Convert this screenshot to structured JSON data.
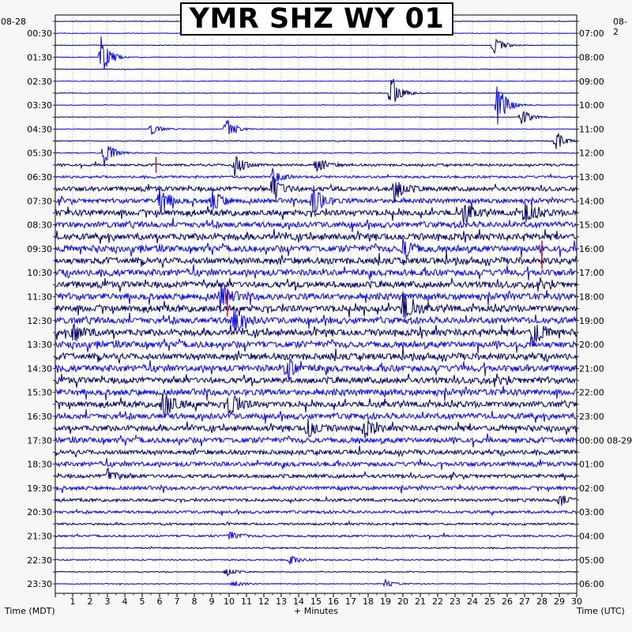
{
  "title": "YMR SHZ WY 01",
  "left_date": "08-28",
  "right_date": "08-2",
  "colors": {
    "trace_primary": "#0a0a6e",
    "trace_secondary": "#1010ee",
    "gridline": "#7a7a7a",
    "event_marker": "#dd0000",
    "background": "#f7f7f7",
    "plot_background": "#ffffff"
  },
  "chart_data": {
    "type": "helicorder",
    "title": "YMR SHZ WY 01",
    "xlabel": "+ Minutes",
    "left_axis_label": "Time (MDT)",
    "right_axis_label": "Time (UTC)",
    "xlim": [
      0,
      30
    ],
    "x_ticks": [
      "1",
      "2",
      "3",
      "4",
      "5",
      "6",
      "7",
      "8",
      "9",
      "10",
      "11",
      "12",
      "13",
      "14",
      "15",
      "16",
      "17",
      "18",
      "19",
      "20",
      "21",
      "22",
      "23",
      "24",
      "25",
      "26",
      "27",
      "28",
      "29",
      "30"
    ],
    "left_ticks": [
      "00:30",
      "01:30",
      "02:30",
      "03:30",
      "04:30",
      "05:30",
      "06:30",
      "07:30",
      "08:30",
      "09:30",
      "10:30",
      "11:30",
      "12:30",
      "13:30",
      "14:30",
      "15:30",
      "16:30",
      "17:30",
      "18:30",
      "19:30",
      "20:30",
      "21:30",
      "22:30",
      "23:30"
    ],
    "right_ticks": [
      "07:00",
      "08:00",
      "09:00",
      "10:00",
      "11:00",
      "12:00",
      "13:00",
      "14:00",
      "15:00",
      "16:00",
      "17:00",
      "18:00",
      "19:00",
      "20:00",
      "21:00",
      "22:00",
      "23:00",
      "00:00 08-29",
      "01:00",
      "02:00",
      "03:00",
      "04:00",
      "05:00",
      "06:00"
    ],
    "trace_count": 48,
    "minutes_per_trace": 30,
    "trace_colors": [
      "#0a0a6e",
      "#1010ee"
    ],
    "noise_level_by_hour": [
      0.3,
      0.3,
      0.3,
      0.3,
      0.3,
      0.55,
      1.2,
      2.3,
      3.0,
      3.3,
      3.2,
      3.2,
      3.3,
      3.3,
      3.2,
      3.1,
      3.0,
      2.8,
      2.3,
      1.9,
      1.5,
      1.1,
      0.7,
      0.45
    ],
    "events": [
      {
        "trace": 2,
        "minute": 25.2,
        "amplitude": 14
      },
      {
        "trace": 3,
        "minute": 2.6,
        "amplitude": 30
      },
      {
        "trace": 6,
        "minute": 19.3,
        "amplitude": 26
      },
      {
        "trace": 7,
        "minute": 25.4,
        "amplitude": 32
      },
      {
        "trace": 8,
        "minute": 26.8,
        "amplitude": 12
      },
      {
        "trace": 9,
        "minute": 9.8,
        "amplitude": 16
      },
      {
        "trace": 9,
        "minute": 5.5,
        "amplitude": 8
      },
      {
        "trace": 10,
        "minute": 28.8,
        "amplitude": 12
      },
      {
        "trace": 11,
        "minute": 2.8,
        "amplitude": 18
      },
      {
        "trace": 12,
        "minute": 10.3,
        "amplitude": 15
      },
      {
        "trace": 12,
        "minute": 15.0,
        "amplitude": 10
      },
      {
        "trace": 13,
        "minute": 12.5,
        "amplitude": 12
      },
      {
        "trace": 14,
        "minute": 12.5,
        "amplitude": 18
      },
      {
        "trace": 14,
        "minute": 19.5,
        "amplitude": 16
      },
      {
        "trace": 15,
        "minute": 6.0,
        "amplitude": 18
      },
      {
        "trace": 15,
        "minute": 9.0,
        "amplitude": 16
      },
      {
        "trace": 15,
        "minute": 14.8,
        "amplitude": 22
      },
      {
        "trace": 16,
        "minute": 27.0,
        "amplitude": 16
      },
      {
        "trace": 16,
        "minute": 23.5,
        "amplitude": 14
      },
      {
        "trace": 19,
        "minute": 20.0,
        "amplitude": 14
      },
      {
        "trace": 23,
        "minute": 9.5,
        "amplitude": 18
      },
      {
        "trace": 24,
        "minute": 20.0,
        "amplitude": 18
      },
      {
        "trace": 25,
        "minute": 10.2,
        "amplitude": 20
      },
      {
        "trace": 26,
        "minute": 1.0,
        "amplitude": 16
      },
      {
        "trace": 26,
        "minute": 27.5,
        "amplitude": 18
      },
      {
        "trace": 29,
        "minute": 13.3,
        "amplitude": 16
      },
      {
        "trace": 32,
        "minute": 6.2,
        "amplitude": 22
      },
      {
        "trace": 32,
        "minute": 10.0,
        "amplitude": 18
      },
      {
        "trace": 34,
        "minute": 14.5,
        "amplitude": 14
      },
      {
        "trace": 34,
        "minute": 17.8,
        "amplitude": 12
      },
      {
        "trace": 38,
        "minute": 3.0,
        "amplitude": 10
      },
      {
        "trace": 40,
        "minute": 29.0,
        "amplitude": 9
      },
      {
        "trace": 43,
        "minute": 10.0,
        "amplitude": 6
      },
      {
        "trace": 45,
        "minute": 13.5,
        "amplitude": 6
      },
      {
        "trace": 46,
        "minute": 9.8,
        "amplitude": 6
      },
      {
        "trace": 47,
        "minute": 10.2,
        "amplitude": 5
      },
      {
        "trace": 47,
        "minute": 19.0,
        "amplitude": 5
      }
    ],
    "red_markers": [
      {
        "trace": 12,
        "minute": 5.8
      },
      {
        "trace": 19,
        "minute": 28.0
      },
      {
        "trace": 20,
        "minute": 28.0
      },
      {
        "trace": 23,
        "minute": 9.9
      },
      {
        "trace": 24,
        "minute": 9.9
      }
    ],
    "grid": true
  }
}
